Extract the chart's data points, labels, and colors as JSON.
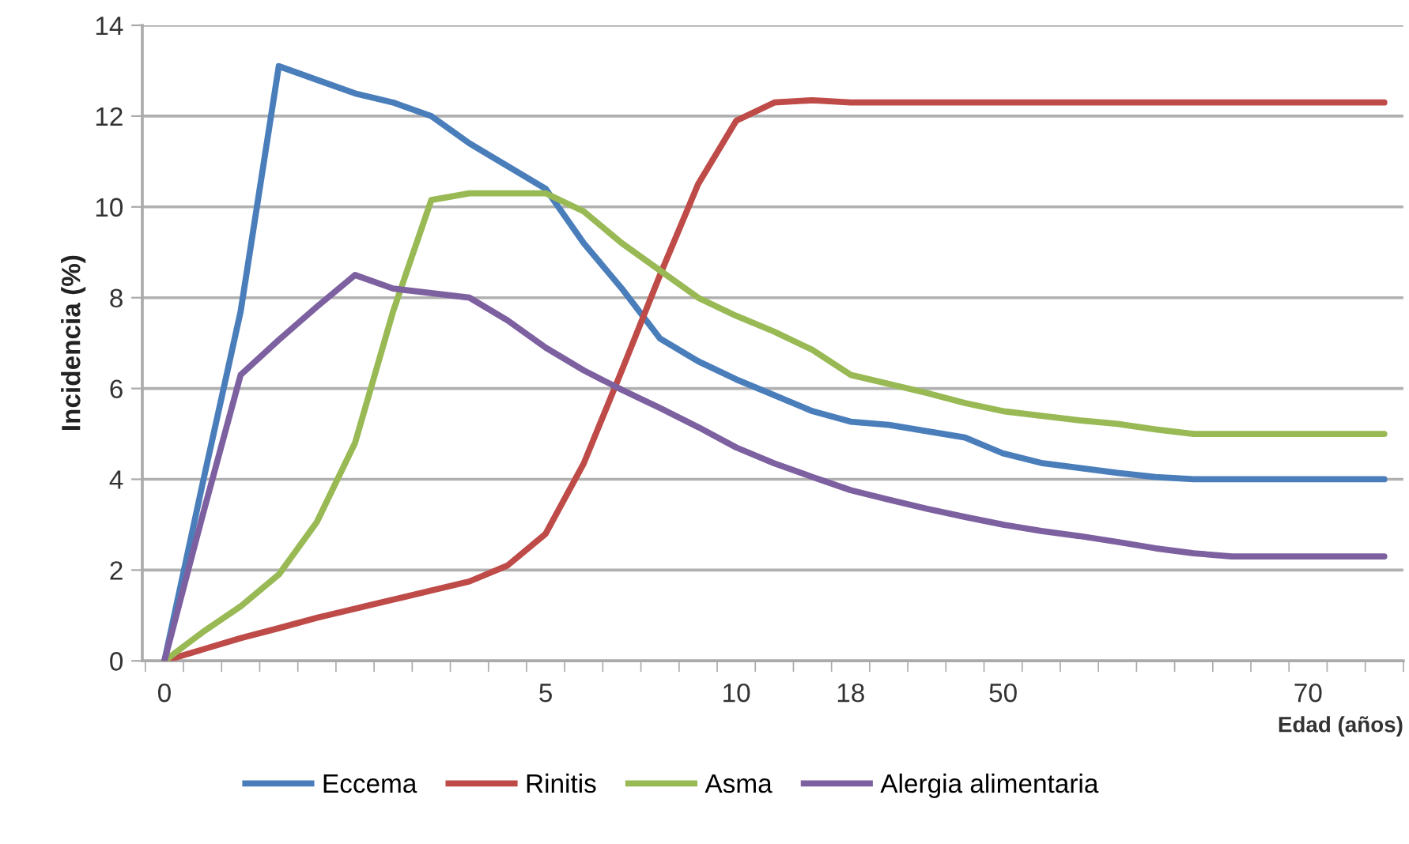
{
  "chart_data": {
    "type": "line",
    "xlabel": "Edad (años)",
    "ylabel": "Incidencia (%)",
    "categories": [
      "0",
      null,
      null,
      null,
      null,
      null,
      null,
      null,
      null,
      null,
      "5",
      null,
      null,
      null,
      null,
      "10",
      null,
      null,
      "18",
      null,
      null,
      null,
      "50",
      null,
      null,
      null,
      null,
      null,
      null,
      null,
      "70",
      null,
      null
    ],
    "series": [
      {
        "name": "Eccema",
        "color": "#4a7ebb",
        "values": [
          0,
          3.9,
          7.7,
          13.1,
          12.8,
          12.5,
          12.3,
          12.0,
          11.4,
          10.9,
          10.4,
          9.2,
          8.2,
          7.1,
          6.6,
          6.2,
          5.85,
          5.5,
          5.27,
          5.2,
          5.06,
          4.92,
          4.57,
          4.36,
          4.25,
          4.14,
          4.05,
          4.0,
          4.0,
          4.0,
          4.0,
          4.0,
          4.0
        ]
      },
      {
        "name": "Rinitis",
        "color": "#be4b48",
        "values": [
          0,
          0.25,
          0.5,
          0.72,
          0.95,
          1.15,
          1.35,
          1.55,
          1.75,
          2.1,
          2.8,
          4.35,
          6.4,
          8.5,
          10.5,
          11.9,
          12.3,
          12.35,
          12.3,
          12.3,
          12.3,
          12.3,
          12.3,
          12.3,
          12.3,
          12.3,
          12.3,
          12.3,
          12.3,
          12.3,
          12.3,
          12.3,
          12.3
        ]
      },
      {
        "name": "Asma",
        "color": "#98b954",
        "values": [
          0,
          0.63,
          1.2,
          1.9,
          3.06,
          4.8,
          7.7,
          10.15,
          10.3,
          10.3,
          10.3,
          9.9,
          9.2,
          8.6,
          8.0,
          7.6,
          7.25,
          6.85,
          6.3,
          6.1,
          5.9,
          5.68,
          5.5,
          5.4,
          5.3,
          5.22,
          5.1,
          5.0,
          5.0,
          5.0,
          5.0,
          5.0,
          5.0
        ]
      },
      {
        "name": "Alergia alimentaria",
        "color": "#7d60a0",
        "values": [
          0,
          3.2,
          6.3,
          7.07,
          7.8,
          8.5,
          8.2,
          8.1,
          8.0,
          7.5,
          6.9,
          6.4,
          5.97,
          5.57,
          5.15,
          4.7,
          4.35,
          4.05,
          3.76,
          3.55,
          3.35,
          3.17,
          3.0,
          2.86,
          2.75,
          2.62,
          2.48,
          2.37,
          2.3,
          2.3,
          2.3,
          2.3,
          2.3
        ]
      }
    ],
    "ylim": [
      0,
      14
    ],
    "yticks": [
      0,
      2,
      4,
      6,
      8,
      10,
      12,
      14
    ],
    "grid": "y",
    "legend": "bottom",
    "marker": "none",
    "line_style": "solid"
  }
}
